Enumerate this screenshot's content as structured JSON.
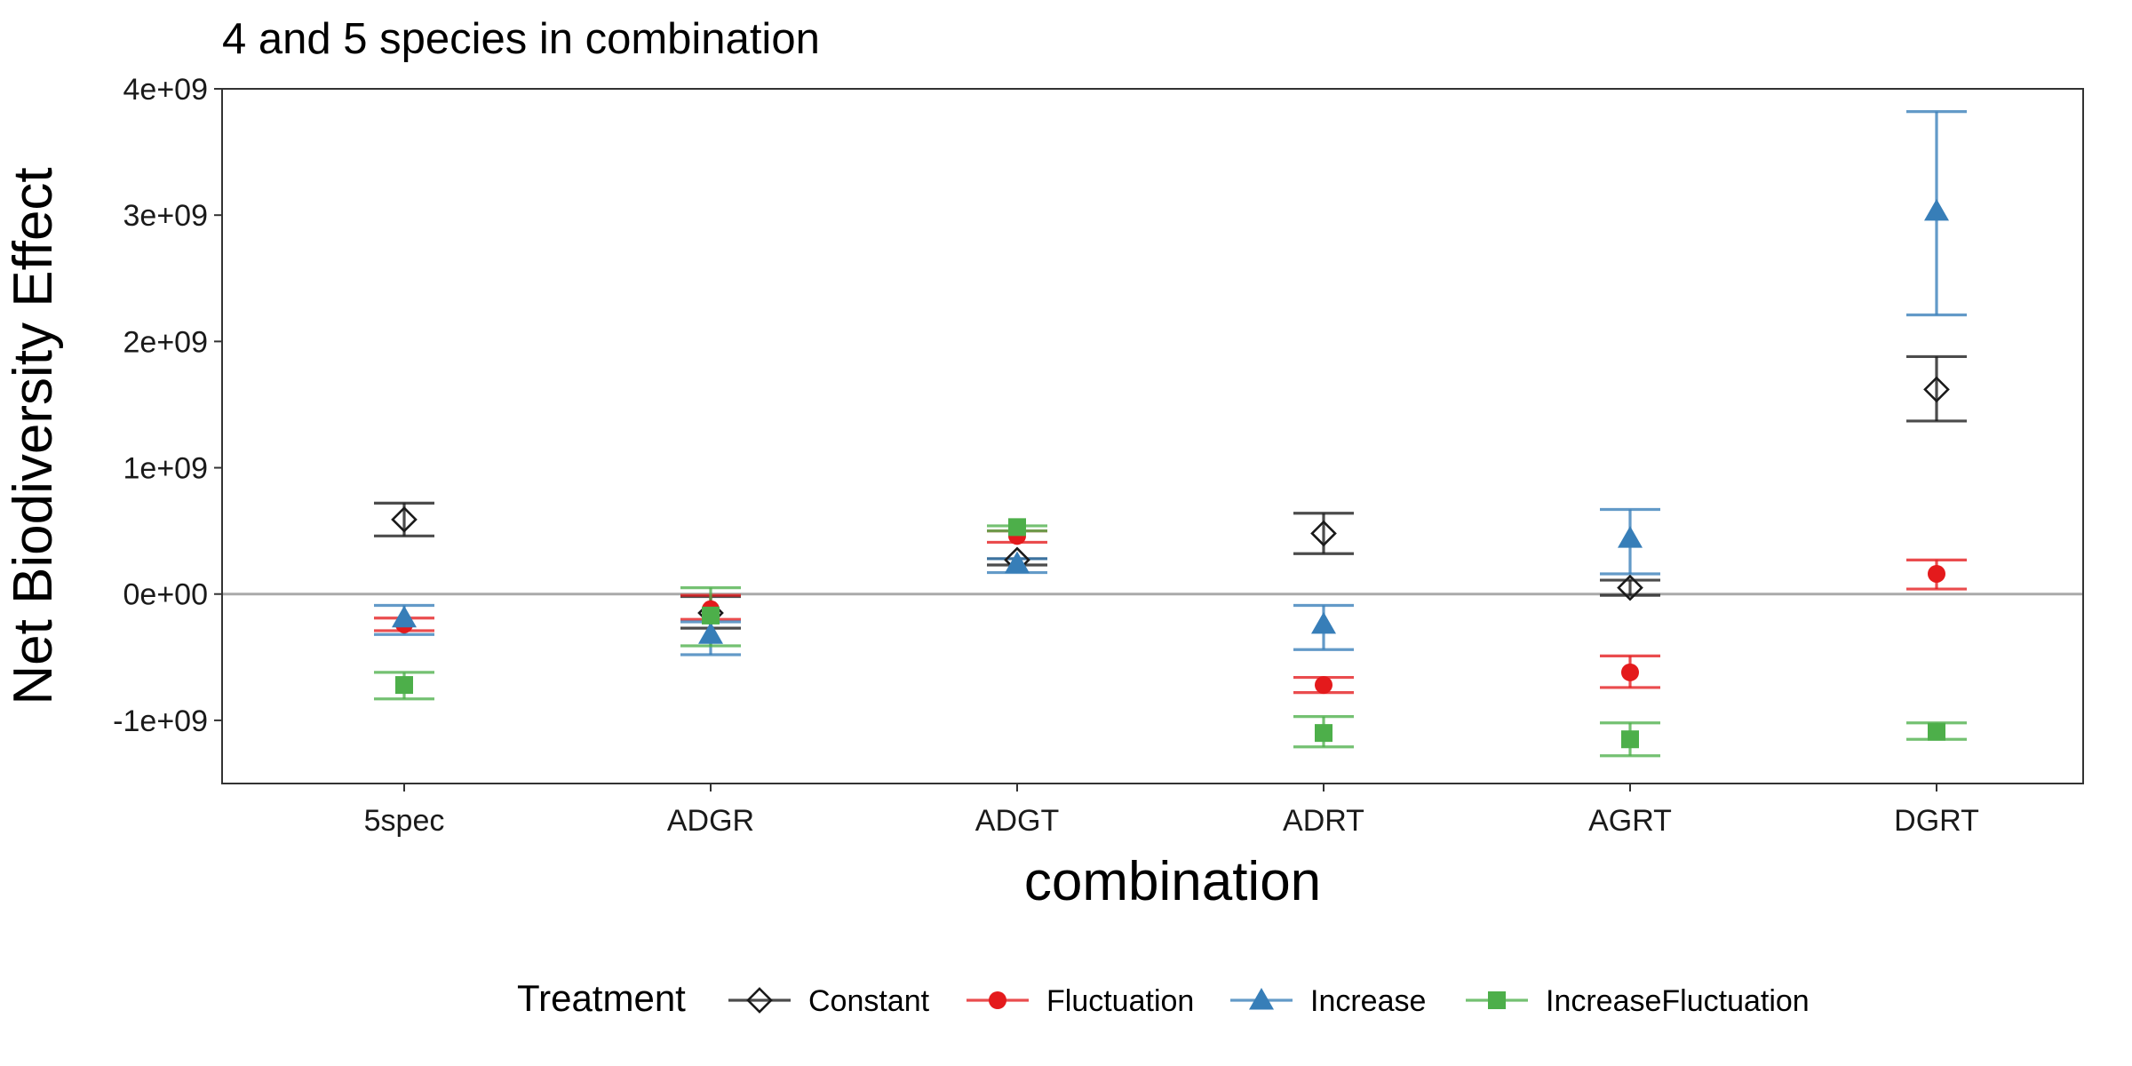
{
  "chart_data": {
    "type": "scatter",
    "title": "4 and 5 species in combination",
    "xlabel": "combination",
    "ylabel": "Net Biodiversity Effect",
    "categories": [
      "5spec",
      "ADGR",
      "ADGT",
      "ADRT",
      "AGRT",
      "DGRT"
    ],
    "ylim": [
      -1500000000,
      4000000000
    ],
    "yticks": [
      -1000000000,
      0,
      1000000000,
      2000000000,
      3000000000,
      4000000000
    ],
    "ytick_labels": [
      "-1e+09",
      "0e+00",
      "1e+09",
      "2e+09",
      "3e+09",
      "4e+09"
    ],
    "reference_line_y": 0,
    "reference_line_color": "#aaaaaa",
    "grid": false,
    "legend_title": "Treatment",
    "legend_position": "bottom",
    "series": [
      {
        "name": "Constant",
        "marker": "diamond-open",
        "color": "#1a1a1a",
        "values": [
          590000000,
          -150000000,
          270000000,
          480000000,
          50000000,
          1620000000
        ],
        "err_low": [
          460000000,
          -270000000,
          230000000,
          320000000,
          -10000000,
          1370000000
        ],
        "err_high": [
          720000000,
          -20000000,
          280000000,
          640000000,
          110000000,
          1880000000
        ]
      },
      {
        "name": "Fluctuation",
        "marker": "circle",
        "color": "#e41a1c",
        "values": [
          -240000000,
          -120000000,
          460000000,
          -720000000,
          -620000000,
          160000000
        ],
        "err_low": [
          -290000000,
          -200000000,
          410000000,
          -780000000,
          -740000000,
          40000000
        ],
        "err_high": [
          -190000000,
          -10000000,
          500000000,
          -660000000,
          -490000000,
          270000000
        ]
      },
      {
        "name": "Increase",
        "marker": "triangle",
        "color": "#377eb8",
        "values": [
          -190000000,
          -320000000,
          240000000,
          -240000000,
          440000000,
          3030000000
        ],
        "err_low": [
          -320000000,
          -480000000,
          170000000,
          -440000000,
          160000000,
          2210000000
        ],
        "err_high": [
          -90000000,
          -220000000,
          280000000,
          -90000000,
          670000000,
          3820000000
        ]
      },
      {
        "name": "IncreaseFluctuation",
        "marker": "square",
        "color": "#4daf4a",
        "values": [
          -720000000,
          -170000000,
          530000000,
          -1100000000,
          -1150000000,
          -1090000000
        ],
        "err_low": [
          -830000000,
          -410000000,
          500000000,
          -1210000000,
          -1280000000,
          -1150000000
        ],
        "err_high": [
          -620000000,
          50000000,
          540000000,
          -970000000,
          -1020000000,
          -1020000000
        ]
      }
    ]
  }
}
